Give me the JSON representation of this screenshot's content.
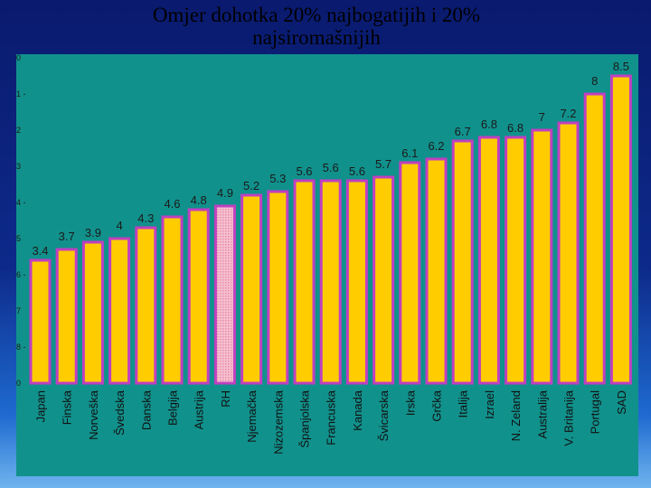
{
  "header": {
    "title_line1": "Omjer dohotka 20% najbogatijih i 20%",
    "title_line2": "najsiromašnijih"
  },
  "colors": {
    "bar_fill": "#ffcc00",
    "bar_stroke": "#c040c0",
    "highlight_fill": "#f4b6c8",
    "panel_bg": "#11918c"
  },
  "chart_data": {
    "type": "bar",
    "title": "Omjer dohotka 20% najbogatijih i 20% najsiromašnijih",
    "xlabel": "",
    "ylabel": "",
    "ylim": [
      0,
      9
    ],
    "grid": false,
    "highlight": "RH",
    "categories": [
      "Japan",
      "Finska",
      "Norveška",
      "Švedska",
      "Danska",
      "Belgija",
      "Austrija",
      "RH",
      "Njemačka",
      "Nizozemska",
      "Španjolska",
      "Francuska",
      "Kanada",
      "Švicarska",
      "Irska",
      "Grčka",
      "Italija",
      "Izrael",
      "N. Zeland",
      "Australija",
      "V. Britanija",
      "Portugal",
      "SAD"
    ],
    "values": [
      3.4,
      3.7,
      3.9,
      4,
      4.3,
      4.6,
      4.8,
      4.9,
      5.2,
      5.3,
      5.6,
      5.6,
      5.6,
      5.7,
      6.1,
      6.2,
      6.7,
      6.8,
      6.8,
      7,
      7.2,
      8,
      8.5
    ],
    "value_labels": [
      "3.4",
      "3.7",
      "3.9",
      "4",
      "4.3",
      "4.6",
      "4.8",
      "4.9",
      "5.2",
      "5.3",
      "5.6",
      "5.6",
      "5.6",
      "5.7",
      "6.1",
      "6.2",
      "6.7",
      "6.8",
      "6.8",
      "7",
      "7.2",
      "8",
      "8.5"
    ],
    "y_tick_labels": [
      "0",
      "1 -",
      "2",
      "3",
      "4 -",
      "5",
      "6 -",
      "7",
      "8 -",
      "0"
    ]
  }
}
